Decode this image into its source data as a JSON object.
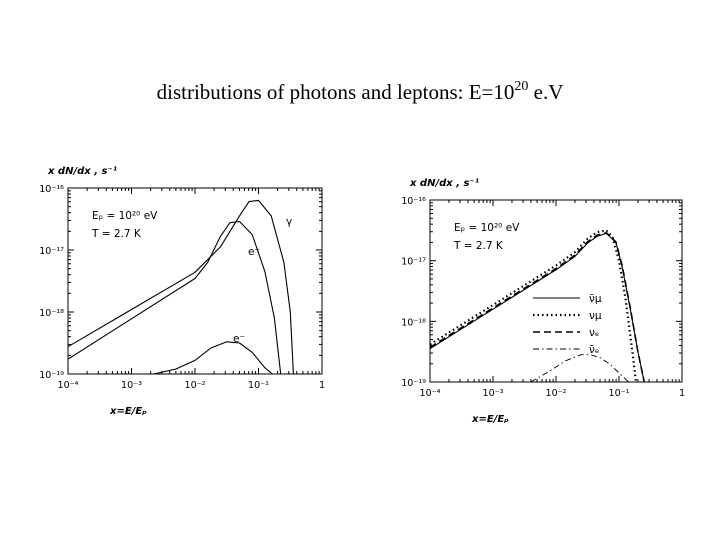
{
  "slide": {
    "title_main": "distributions of photons and leptons: E=10",
    "title_exp": "20",
    "title_tail": " e.V"
  },
  "chart_data": [
    {
      "type": "line",
      "ylabel": "x dN/dx ,  s⁻¹",
      "xlabel": "x=E/Eₚ",
      "xscale": "log",
      "yscale": "log",
      "xlim_log10": [
        -4,
        0
      ],
      "ylim_log10": [
        -19,
        -16
      ],
      "xticks": [
        "10⁻⁴",
        "10⁻³",
        "10⁻²",
        "10⁻¹",
        "1"
      ],
      "yticks": [
        "10⁻¹⁶",
        "10⁻¹⁷",
        "10⁻¹⁸",
        "10⁻¹⁹"
      ],
      "annotations": [
        "Eₚ = 10²⁰ eV",
        "T = 2.7 K"
      ],
      "series": [
        {
          "name": "γ",
          "style": "solid",
          "x": [
            -4,
            -3,
            -2,
            -1.6,
            -1.3,
            -1.15,
            -1.0,
            -0.8,
            -0.6,
            -0.5,
            -0.45
          ],
          "y": [
            -18.56,
            -17.96,
            -17.36,
            -16.95,
            -16.45,
            -16.22,
            -16.2,
            -16.45,
            -17.2,
            -18.0,
            -19.0
          ]
        },
        {
          "name": "e⁺",
          "style": "solid",
          "x": [
            -4,
            -3,
            -2,
            -1.8,
            -1.6,
            -1.45,
            -1.3,
            -1.1,
            -0.9,
            -0.75,
            -0.65
          ],
          "y": [
            -18.76,
            -18.11,
            -17.46,
            -17.2,
            -16.78,
            -16.56,
            -16.54,
            -16.75,
            -17.35,
            -18.1,
            -19.0
          ]
        },
        {
          "name": "e⁻",
          "style": "solid",
          "x": [
            -2.65,
            -2.3,
            -2.0,
            -1.75,
            -1.5,
            -1.3,
            -1.1,
            -0.9,
            -0.78
          ],
          "y": [
            -19.0,
            -18.92,
            -18.78,
            -18.58,
            -18.48,
            -18.5,
            -18.65,
            -18.9,
            -19.0
          ]
        }
      ]
    },
    {
      "type": "line",
      "ylabel": "x dN/dx ,  s⁻¹",
      "xlabel": "x=E/Eₚ",
      "xscale": "log",
      "yscale": "log",
      "xlim_log10": [
        -4,
        0
      ],
      "ylim_log10": [
        -19,
        -16
      ],
      "xticks": [
        "10⁻⁴",
        "10⁻³",
        "10⁻²",
        "10⁻¹",
        "1"
      ],
      "yticks": [
        "10⁻¹⁶",
        "10⁻¹⁷",
        "10⁻¹⁸",
        "10⁻¹⁹"
      ],
      "annotations": [
        "Eₚ = 10²⁰ eV",
        "T = 2.7 K"
      ],
      "series": [
        {
          "name": "ν̄μ",
          "style": "solid",
          "x": [
            -4,
            -3,
            -2,
            -1.7,
            -1.5,
            -1.35,
            -1.2,
            -1.05,
            -0.95,
            -0.82,
            -0.7,
            -0.6
          ],
          "y": [
            -18.45,
            -17.8,
            -17.15,
            -16.93,
            -16.71,
            -16.6,
            -16.55,
            -16.7,
            -17.1,
            -17.8,
            -18.5,
            -19.0
          ]
        },
        {
          "name": "νμ",
          "style": "dotted",
          "x": [
            -4,
            -3,
            -2,
            -1.7,
            -1.5,
            -1.35,
            -1.2,
            -1.1,
            -1.0,
            -0.9,
            -0.8,
            -0.73
          ],
          "y": [
            -18.38,
            -17.73,
            -17.08,
            -16.86,
            -16.64,
            -16.53,
            -16.5,
            -16.62,
            -17.0,
            -17.6,
            -18.4,
            -19.0
          ]
        },
        {
          "name": "νₑ",
          "style": "dashed",
          "x": [
            -4,
            -3,
            -2,
            -1.7,
            -1.5,
            -1.35,
            -1.2,
            -1.05,
            -0.95,
            -0.82,
            -0.7,
            -0.6
          ],
          "y": [
            -18.43,
            -17.78,
            -17.13,
            -16.91,
            -16.69,
            -16.58,
            -16.54,
            -16.69,
            -17.08,
            -17.78,
            -18.5,
            -19.0
          ]
        },
        {
          "name": "ν̄ₑ",
          "style": "dash-dot",
          "x": [
            -2.4,
            -2.1,
            -1.85,
            -1.6,
            -1.45,
            -1.3,
            -1.15,
            -1.0,
            -0.85
          ],
          "y": [
            -19.0,
            -18.82,
            -18.65,
            -18.55,
            -18.55,
            -18.6,
            -18.7,
            -18.85,
            -19.0
          ]
        }
      ],
      "legend": "right-middle"
    }
  ]
}
